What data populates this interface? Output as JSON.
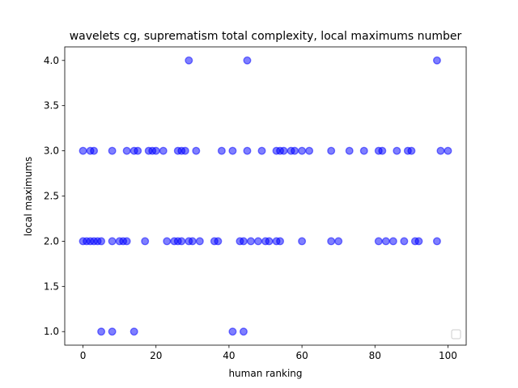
{
  "chart_data": {
    "type": "scatter",
    "title": "wavelets cg, suprematism total complexity, local maximums number",
    "xlabel": "human ranking",
    "ylabel": "local maximums",
    "xlim": [
      -5,
      105
    ],
    "ylim": [
      0.85,
      4.15
    ],
    "xticks": [
      0,
      20,
      40,
      60,
      80,
      100
    ],
    "yticks": [
      1.0,
      1.5,
      2.0,
      2.5,
      3.0,
      3.5,
      4.0
    ],
    "xtick_labels": [
      "0",
      "20",
      "40",
      "60",
      "80",
      "100"
    ],
    "ytick_labels": [
      "1.0",
      "1.5",
      "2.0",
      "2.5",
      "3.0",
      "3.5",
      "4.0"
    ],
    "grid": false,
    "legend": "lower-right (empty)",
    "colors": {
      "marker_fill": "#0000ff",
      "marker_alpha": 0.5
    },
    "points": [
      [
        29,
        4
      ],
      [
        45,
        4
      ],
      [
        97,
        4
      ],
      [
        0,
        3
      ],
      [
        2,
        3
      ],
      [
        3,
        3
      ],
      [
        8,
        3
      ],
      [
        12,
        3
      ],
      [
        14,
        3
      ],
      [
        15,
        3
      ],
      [
        18,
        3
      ],
      [
        19,
        3
      ],
      [
        20,
        3
      ],
      [
        22,
        3
      ],
      [
        26,
        3
      ],
      [
        27,
        3
      ],
      [
        28,
        3
      ],
      [
        31,
        3
      ],
      [
        38,
        3
      ],
      [
        41,
        3
      ],
      [
        45,
        3
      ],
      [
        49,
        3
      ],
      [
        53,
        3
      ],
      [
        54,
        3
      ],
      [
        55,
        3
      ],
      [
        57,
        3
      ],
      [
        58,
        3
      ],
      [
        60,
        3
      ],
      [
        62,
        3
      ],
      [
        68,
        3
      ],
      [
        73,
        3
      ],
      [
        77,
        3
      ],
      [
        81,
        3
      ],
      [
        82,
        3
      ],
      [
        86,
        3
      ],
      [
        89,
        3
      ],
      [
        90,
        3
      ],
      [
        98,
        3
      ],
      [
        100,
        3
      ],
      [
        0,
        2
      ],
      [
        1,
        2
      ],
      [
        2,
        2
      ],
      [
        3,
        2
      ],
      [
        4,
        2
      ],
      [
        5,
        2
      ],
      [
        8,
        2
      ],
      [
        10,
        2
      ],
      [
        11,
        2
      ],
      [
        12,
        2
      ],
      [
        17,
        2
      ],
      [
        23,
        2
      ],
      [
        25,
        2
      ],
      [
        26,
        2
      ],
      [
        27,
        2
      ],
      [
        29,
        2
      ],
      [
        30,
        2
      ],
      [
        32,
        2
      ],
      [
        36,
        2
      ],
      [
        37,
        2
      ],
      [
        43,
        2
      ],
      [
        44,
        2
      ],
      [
        46,
        2
      ],
      [
        48,
        2
      ],
      [
        50,
        2
      ],
      [
        51,
        2
      ],
      [
        53,
        2
      ],
      [
        54,
        2
      ],
      [
        60,
        2
      ],
      [
        68,
        2
      ],
      [
        70,
        2
      ],
      [
        81,
        2
      ],
      [
        83,
        2
      ],
      [
        85,
        2
      ],
      [
        88,
        2
      ],
      [
        91,
        2
      ],
      [
        92,
        2
      ],
      [
        97,
        2
      ],
      [
        5,
        1
      ],
      [
        8,
        1
      ],
      [
        14,
        1
      ],
      [
        41,
        1
      ],
      [
        44,
        1
      ]
    ]
  }
}
